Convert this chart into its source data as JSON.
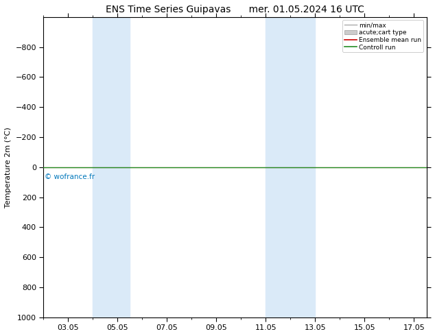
{
  "title_left": "ENS Time Series Guipavas",
  "title_right": "mer. 01.05.2024 16 UTC",
  "ylabel": "Temperature 2m (°C)",
  "xlim": [
    2.0,
    17.5
  ],
  "ylim": [
    1000,
    -1000
  ],
  "yticks": [
    -800,
    -600,
    -400,
    -200,
    0,
    200,
    400,
    600,
    800,
    1000
  ],
  "xtick_labels": [
    "03.05",
    "05.05",
    "07.05",
    "09.05",
    "11.05",
    "13.05",
    "15.05",
    "17.05"
  ],
  "xtick_positions": [
    3.0,
    5.0,
    7.0,
    9.0,
    11.0,
    13.0,
    15.0,
    17.0
  ],
  "shaded_bands": [
    {
      "xmin": 4.0,
      "xmax": 5.5
    },
    {
      "xmin": 11.0,
      "xmax": 13.0
    }
  ],
  "band_color": "#daeaf8",
  "green_line_y": 0.0,
  "red_line_y": 0.0,
  "green_line_color": "#228B22",
  "red_line_color": "#cc0000",
  "copyright_text": "© wofrance.fr",
  "copyright_color": "#0077bb",
  "legend_labels": [
    "min/max",
    "acute;cart type",
    "Ensemble mean run",
    "Controll run"
  ],
  "legend_line_colors": [
    "#aaaaaa",
    "#cccccc",
    "#cc0000",
    "#228B22"
  ],
  "background_color": "#ffffff",
  "title_fontsize": 10,
  "axis_fontsize": 8,
  "tick_fontsize": 8
}
